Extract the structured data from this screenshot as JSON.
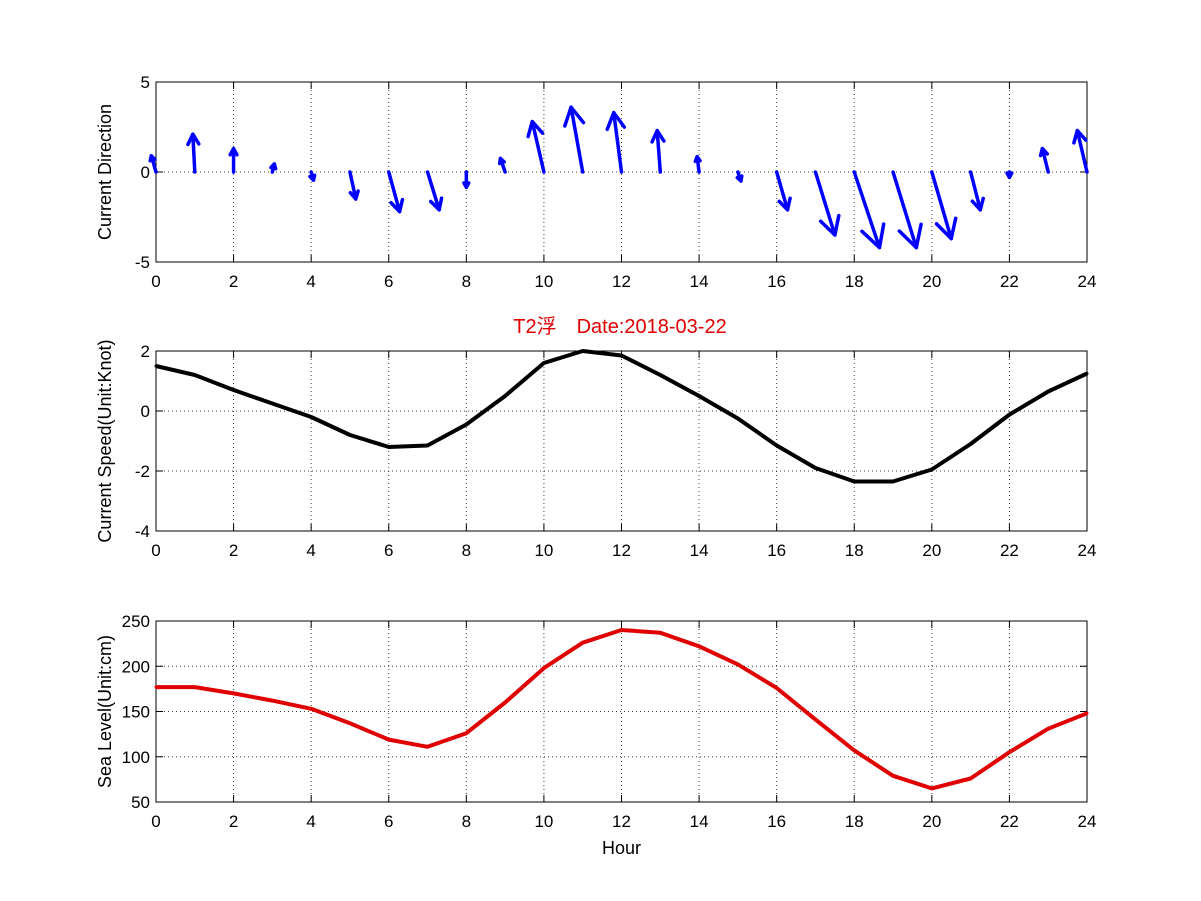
{
  "title": "T2浮　Date:2018-03-22",
  "title_color": "#e00000",
  "chart_data": [
    {
      "type": "quiver",
      "ylabel": "Current Direction",
      "xlim": [
        0,
        24
      ],
      "ylim": [
        -5,
        5
      ],
      "xticks": [
        "0",
        "2",
        "4",
        "6",
        "8",
        "10",
        "12",
        "14",
        "16",
        "18",
        "20",
        "22",
        "24"
      ],
      "yticks": [
        "5",
        "0",
        "-5"
      ],
      "grid": true,
      "color": "#0000ff",
      "x": [
        0,
        1,
        2,
        3,
        4,
        5,
        6,
        7,
        8,
        9,
        10,
        11,
        12,
        13,
        14,
        15,
        16,
        17,
        18,
        19,
        20,
        21,
        22,
        23,
        24
      ],
      "u": [
        -0.12,
        -0.05,
        0.0,
        0.05,
        0.06,
        0.15,
        0.28,
        0.3,
        0.0,
        -0.12,
        -0.3,
        -0.3,
        -0.2,
        -0.08,
        -0.05,
        0.08,
        0.28,
        0.5,
        0.65,
        0.6,
        0.5,
        0.25,
        0.0,
        -0.15,
        -0.25
      ],
      "v": [
        0.9,
        2.1,
        1.3,
        0.45,
        -0.45,
        -1.5,
        -2.2,
        -2.1,
        -0.85,
        0.75,
        2.8,
        3.6,
        3.3,
        2.3,
        0.85,
        -0.5,
        -2.1,
        -3.5,
        -4.2,
        -4.2,
        -3.7,
        -2.1,
        -0.3,
        1.3,
        2.3
      ]
    },
    {
      "type": "line",
      "ylabel": "Current Speed(Unit:Knot)",
      "xlim": [
        0,
        24
      ],
      "ylim": [
        -4,
        2
      ],
      "xticks": [
        "0",
        "2",
        "4",
        "6",
        "8",
        "10",
        "12",
        "14",
        "16",
        "18",
        "20",
        "22",
        "24"
      ],
      "yticks": [
        "2",
        "0",
        "-2",
        "-4"
      ],
      "grid": true,
      "color": "#000000",
      "x": [
        0,
        1,
        2,
        3,
        4,
        5,
        6,
        7,
        8,
        9,
        10,
        11,
        12,
        13,
        14,
        15,
        16,
        17,
        18,
        19,
        20,
        21,
        22,
        23,
        24
      ],
      "y": [
        1.5,
        1.2,
        0.7,
        0.25,
        -0.2,
        -0.8,
        -1.2,
        -1.15,
        -0.45,
        0.5,
        1.6,
        2.0,
        1.85,
        1.2,
        0.5,
        -0.25,
        -1.15,
        -1.9,
        -2.35,
        -2.35,
        -1.95,
        -1.1,
        -0.12,
        0.65,
        1.25
      ]
    },
    {
      "type": "line",
      "xlabel": "Hour",
      "ylabel": "Sea Level(Unit:cm)",
      "xlim": [
        0,
        24
      ],
      "ylim": [
        50,
        250
      ],
      "xticks": [
        "0",
        "2",
        "4",
        "6",
        "8",
        "10",
        "12",
        "14",
        "16",
        "18",
        "20",
        "22",
        "24"
      ],
      "yticks": [
        "250",
        "200",
        "150",
        "100",
        "50"
      ],
      "grid": true,
      "color": "#e00000",
      "x": [
        0,
        1,
        2,
        3,
        4,
        5,
        6,
        7,
        8,
        9,
        10,
        11,
        12,
        13,
        14,
        15,
        16,
        17,
        18,
        19,
        20,
        21,
        22,
        23,
        24
      ],
      "y": [
        177,
        177,
        170,
        162,
        153,
        137,
        119,
        111,
        126,
        160,
        198,
        226,
        240,
        237,
        222,
        202,
        176,
        141,
        107,
        79,
        65,
        76,
        105,
        131,
        148
      ]
    }
  ]
}
